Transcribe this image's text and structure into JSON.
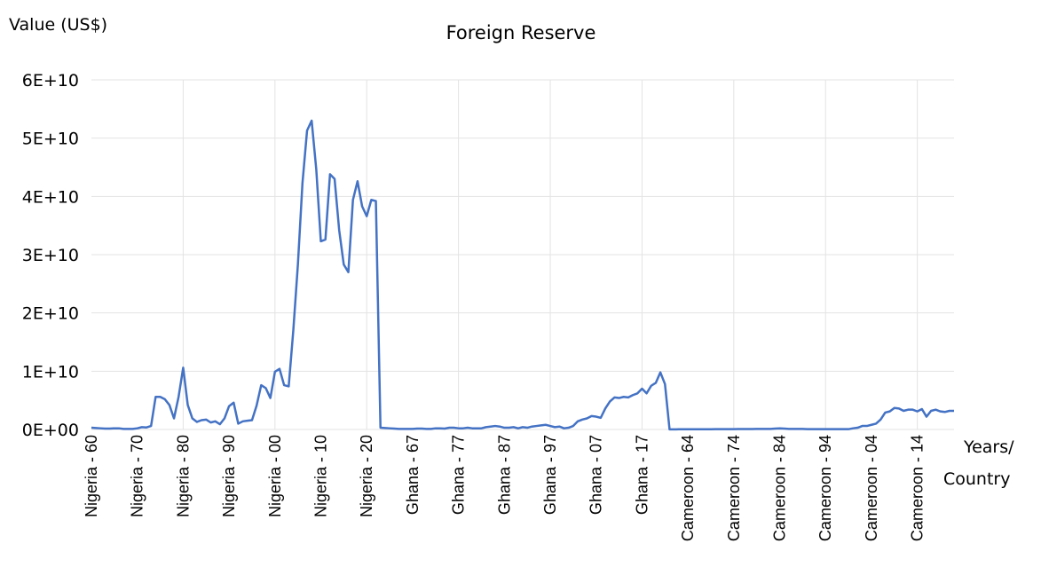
{
  "chart_data": {
    "type": "line",
    "title": "Foreign Reserve",
    "y_label": "Value (US$)",
    "x_label": [
      "Years/",
      "Country"
    ],
    "categories": [
      "Nigeria - 60",
      null,
      null,
      null,
      null,
      null,
      null,
      null,
      null,
      null,
      "Nigeria - 70",
      null,
      null,
      null,
      null,
      null,
      null,
      null,
      null,
      null,
      "Nigeria - 80",
      null,
      null,
      null,
      null,
      null,
      null,
      null,
      null,
      null,
      "Nigeria - 90",
      null,
      null,
      null,
      null,
      null,
      null,
      null,
      null,
      null,
      "Nigeria - 00",
      null,
      null,
      null,
      null,
      null,
      null,
      null,
      null,
      null,
      "Nigeria - 10",
      null,
      null,
      null,
      null,
      null,
      null,
      null,
      null,
      null,
      "Nigeria - 20",
      null,
      null,
      null,
      null,
      null,
      null,
      null,
      null,
      null,
      "Ghana - 67",
      null,
      null,
      null,
      null,
      null,
      null,
      null,
      null,
      null,
      "Ghana - 77",
      null,
      null,
      null,
      null,
      null,
      null,
      null,
      null,
      null,
      "Ghana - 87",
      null,
      null,
      null,
      null,
      null,
      null,
      null,
      null,
      null,
      "Ghana - 97",
      null,
      null,
      null,
      null,
      null,
      null,
      null,
      null,
      null,
      "Ghana - 07",
      null,
      null,
      null,
      null,
      null,
      null,
      null,
      null,
      null,
      "Ghana - 17",
      null,
      null,
      null,
      null,
      null,
      null,
      null,
      null,
      null,
      "Cameroon - 64",
      null,
      null,
      null,
      null,
      null,
      null,
      null,
      null,
      null,
      "Cameroon - 74",
      null,
      null,
      null,
      null,
      null,
      null,
      null,
      null,
      null,
      "Cameroon - 84",
      null,
      null,
      null,
      null,
      null,
      null,
      null,
      null,
      null,
      "Cameroon - 94",
      null,
      null,
      null,
      null,
      null,
      null,
      null,
      null,
      null,
      "Cameroon - 04",
      null,
      null,
      null,
      null,
      null,
      null,
      null,
      null,
      null,
      "Cameroon - 14",
      null,
      null,
      null,
      null,
      null,
      null,
      null,
      null
    ],
    "series": [
      {
        "name": "Foreign Reserve",
        "color": "#4472c4",
        "values": [
          300000000.0,
          250000000.0,
          200000000.0,
          150000000.0,
          150000000.0,
          200000000.0,
          200000000.0,
          100000000.0,
          100000000.0,
          100000000.0,
          200000000.0,
          400000000.0,
          350000000.0,
          600000000.0,
          5600000000.0,
          5600000000.0,
          5200000000.0,
          4200000000.0,
          1900000000.0,
          5600000000.0,
          10600000000.0,
          4200000000.0,
          1900000000.0,
          1300000000.0,
          1600000000.0,
          1700000000.0,
          1200000000.0,
          1400000000.0,
          900000000.0,
          1900000000.0,
          4000000000.0,
          4600000000.0,
          1000000000.0,
          1400000000.0,
          1500000000.0,
          1600000000.0,
          4100000000.0,
          7600000000.0,
          7100000000.0,
          5400000000.0,
          9900000000.0,
          10400000000.0,
          7600000000.0,
          7400000000.0,
          17000000000.0,
          28300000000.0,
          42300000000.0,
          51300000000.0,
          53000000000.0,
          44700000000.0,
          32300000000.0,
          32600000000.0,
          43800000000.0,
          43000000000.0,
          34200000000.0,
          28300000000.0,
          27000000000.0,
          39400000000.0,
          42600000000.0,
          38300000000.0,
          36600000000.0,
          39400000000.0,
          39200000000.0,
          300000000.0,
          250000000.0,
          200000000.0,
          150000000.0,
          100000000.0,
          100000000.0,
          100000000.0,
          100000000.0,
          150000000.0,
          150000000.0,
          100000000.0,
          100000000.0,
          200000000.0,
          200000000.0,
          150000000.0,
          300000000.0,
          300000000.0,
          200000000.0,
          200000000.0,
          300000000.0,
          200000000.0,
          200000000.0,
          200000000.0,
          400000000.0,
          500000000.0,
          600000000.0,
          500000000.0,
          300000000.0,
          300000000.0,
          400000000.0,
          200000000.0,
          400000000.0,
          300000000.0,
          500000000.0,
          600000000.0,
          700000000.0,
          800000000.0,
          600000000.0,
          400000000.0,
          500000000.0,
          200000000.0,
          300000000.0,
          600000000.0,
          1400000000.0,
          1700000000.0,
          1900000000.0,
          2300000000.0,
          2200000000.0,
          2000000000.0,
          3600000000.0,
          4800000000.0,
          5500000000.0,
          5400000000.0,
          5600000000.0,
          5500000000.0,
          5900000000.0,
          6200000000.0,
          7000000000.0,
          6200000000.0,
          7500000000.0,
          8000000000.0,
          9800000000.0,
          7800000000.0,
          20000000.0,
          20000000.0,
          30000000.0,
          30000000.0,
          30000000.0,
          30000000.0,
          30000000.0,
          40000000.0,
          40000000.0,
          40000000.0,
          50000000.0,
          50000000.0,
          50000000.0,
          60000000.0,
          60000000.0,
          70000000.0,
          70000000.0,
          70000000.0,
          80000000.0,
          100000000.0,
          100000000.0,
          100000000.0,
          100000000.0,
          150000000.0,
          200000000.0,
          150000000.0,
          100000000.0,
          100000000.0,
          100000000.0,
          100000000.0,
          50000000.0,
          50000000.0,
          50000000.0,
          50000000.0,
          50000000.0,
          50000000.0,
          50000000.0,
          50000000.0,
          50000000.0,
          50000000.0,
          200000000.0,
          300000000.0,
          600000000.0,
          600000000.0,
          800000000.0,
          1000000000.0,
          1700000000.0,
          2900000000.0,
          3100000000.0,
          3700000000.0,
          3600000000.0,
          3200000000.0,
          3400000000.0,
          3400000000.0,
          3100000000.0,
          3500000000.0,
          2200000000.0,
          3200000000.0,
          3400000000.0,
          3100000000.0,
          3000000000.0,
          3200000000.0,
          3200000000.0
        ]
      }
    ],
    "ylim": [
      0,
      60000000000
    ],
    "yticks": [
      {
        "value": 0,
        "label": "0E+00"
      },
      {
        "value": 10000000000,
        "label": "1E+10"
      },
      {
        "value": 20000000000,
        "label": "2E+10"
      },
      {
        "value": 30000000000,
        "label": "3E+10"
      },
      {
        "value": 40000000000,
        "label": "4E+10"
      },
      {
        "value": 50000000000,
        "label": "5E+10"
      },
      {
        "value": 60000000000,
        "label": "6E+10"
      }
    ],
    "grid": true
  }
}
